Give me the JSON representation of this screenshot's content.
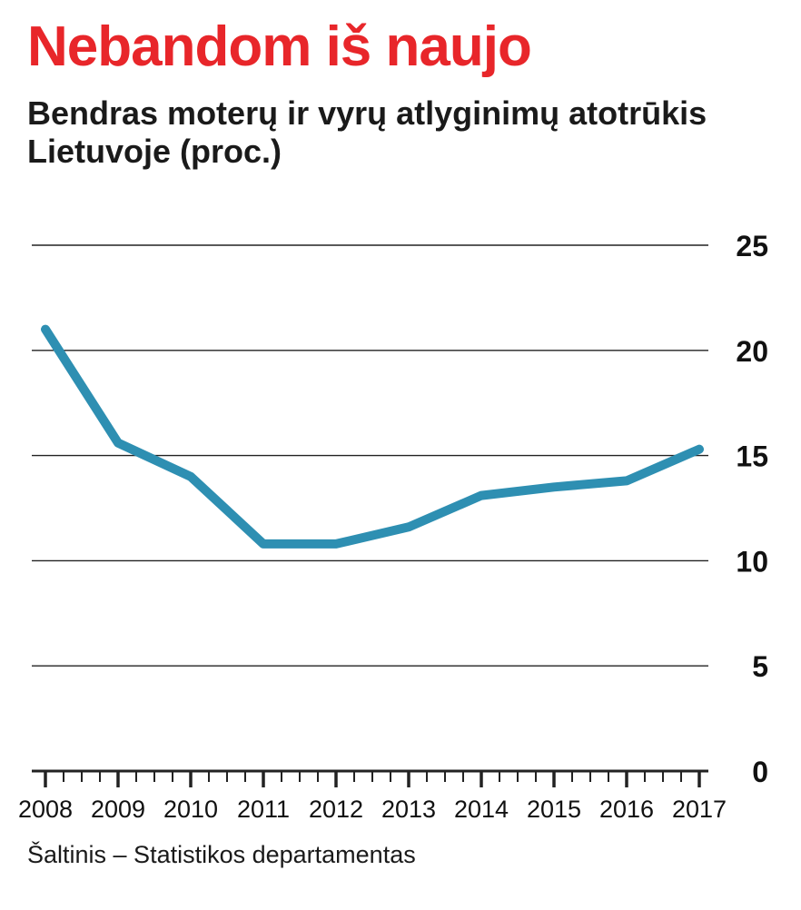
{
  "title": "Nebandom iš naujo",
  "subtitle": "Bendras moterų ir vyrų atlyginimų atotrūkis Lietuvoje (proc.)",
  "source": "Šaltinis – Statistikos departamentas",
  "colors": {
    "title": "#e8262a",
    "line": "#2e8fb2",
    "grid": "#222222"
  },
  "chart_data": {
    "type": "line",
    "title": "Nebandom iš naujo",
    "subtitle": "Bendras moterų ir vyrų atlyginimų atotrūkis Lietuvoje (proc.)",
    "xlabel": "",
    "ylabel": "",
    "categories": [
      "2008",
      "2009",
      "2010",
      "2011",
      "2012",
      "2013",
      "2014",
      "2015",
      "2016",
      "2017"
    ],
    "series": [
      {
        "values": [
          21.0,
          15.6,
          14.0,
          10.8,
          10.8,
          11.6,
          13.1,
          13.5,
          13.8,
          15.3
        ]
      }
    ],
    "ylim": [
      0,
      25
    ],
    "yticks": [
      "0",
      "5",
      "10",
      "15",
      "20",
      "25"
    ],
    "grid": true,
    "legend": "none"
  }
}
